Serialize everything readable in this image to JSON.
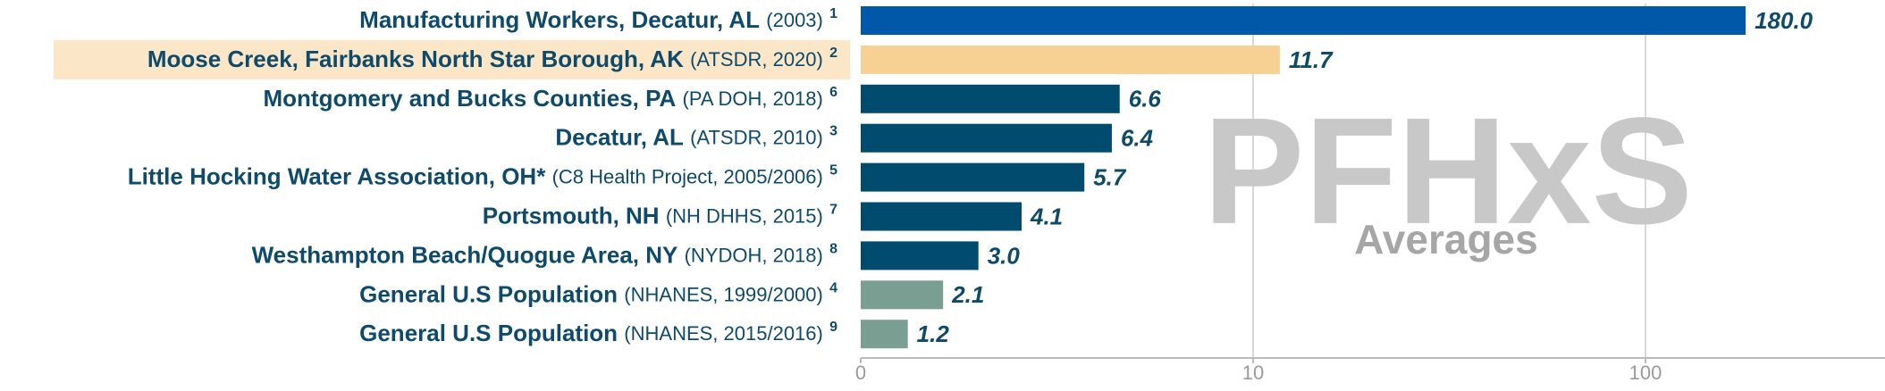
{
  "chart_data": {
    "type": "bar",
    "orientation": "horizontal",
    "scale": "symlog",
    "linthresh": 10,
    "categories": [
      "Manufacturing Workers, Decatur, AL",
      "Moose Creek, Fairbanks North Star Borough, AK",
      "Montgomery and Bucks Counties, PA",
      "Decatur, AL",
      "Little Hocking Water Association, OH*",
      "Portsmouth, NH",
      "Westhampton Beach/Quogue Area, NY",
      "General U.S Population",
      "General U.S Population"
    ],
    "sources": [
      "(2003)",
      "(ATSDR, 2020)",
      "(PA DOH, 2018)",
      "(ATSDR, 2010)",
      "(C8 Health Project, 2005/2006)",
      "(NH DHHS, 2015)",
      "(NYDOH, 2018)",
      "(NHANES, 1999/2000)",
      "(NHANES, 2015/2016)"
    ],
    "footnotes": [
      "1",
      "2",
      "6",
      "3",
      "5",
      "7",
      "8",
      "4",
      "9"
    ],
    "values": [
      180,
      11.7,
      6.6,
      6.4,
      5.7,
      4.1,
      3.0,
      2.1,
      1.2
    ],
    "value_labels": [
      "180.0",
      "11.7",
      "6.6",
      "6.4",
      "5.7",
      "4.1",
      "3.0",
      "2.1",
      "1.2"
    ],
    "colors": [
      "#0158a8",
      "#f6d193",
      "#004b6e",
      "#004b6e",
      "#004b6e",
      "#004b6e",
      "#004b6e",
      "#7a9e91",
      "#7a9e91"
    ],
    "highlight": 1,
    "highlight_color": "#fbe6c7",
    "xlim": [
      0,
      410
    ],
    "xticks": [
      0,
      10,
      100
    ],
    "grid": true,
    "annotations": [
      "PFHxS",
      "Averages"
    ]
  }
}
